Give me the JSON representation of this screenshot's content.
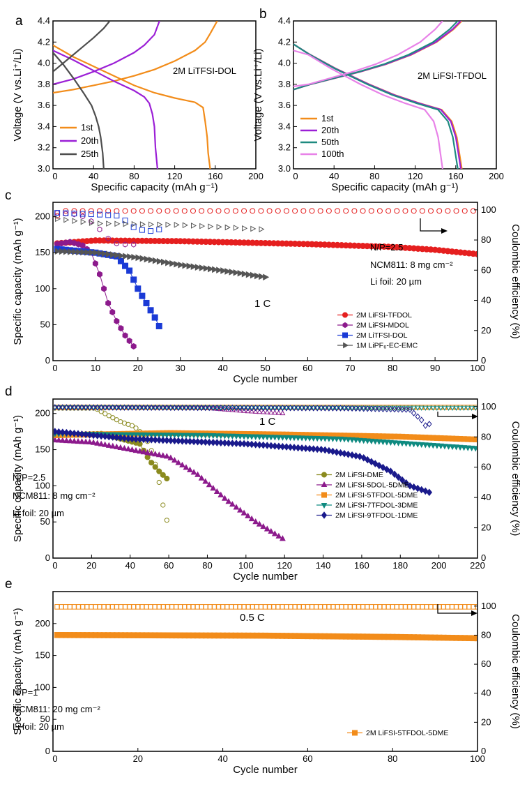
{
  "figure": {
    "panel_labels": [
      "a",
      "b",
      "c",
      "d",
      "e"
    ]
  },
  "colors": {
    "orange": "#f28c1a",
    "purple": "#9b1fd6",
    "darkgray": "#4d4d4d",
    "teal": "#1f8a80",
    "violet": "#e882e8",
    "red": "#e51f1f",
    "magenta": "#8c1a8c",
    "blue": "#1a3ad6",
    "gray": "#555555",
    "olive": "#8a8a1e",
    "navy": "#1a1a8c",
    "teal2": "#0f8a80"
  },
  "chart_data": [
    {
      "id": "a",
      "type": "line",
      "xlabel": "Specific capacity (mAh g⁻¹)",
      "ylabel": "Voltage (V vs.Li⁺/Li)",
      "xlim": [
        0,
        200
      ],
      "ylim": [
        3.0,
        4.4
      ],
      "xticks": [
        "0",
        "40",
        "80",
        "120",
        "160",
        "200"
      ],
      "yticks": [
        "3.0",
        "3.2",
        "3.4",
        "3.6",
        "3.8",
        "4.0",
        "4.2",
        "4.4"
      ],
      "annotation": "2M LiTFSI-DOL",
      "legend": [
        "1st",
        "20th",
        "25th"
      ],
      "series": [
        {
          "name": "1st",
          "color": "orange",
          "charge": {
            "x": [
              0,
              20,
              40,
              60,
              80,
              100,
              120,
              140,
              150,
              155
            ],
            "y": [
              3.72,
              3.75,
              3.79,
              3.83,
              3.88,
              3.94,
              4.02,
              4.12,
              4.2,
              4.28
            ]
          },
          "charge_end": {
            "x": [
              155,
              162
            ],
            "y": [
              4.28,
              4.4
            ]
          },
          "discharge": {
            "x": [
              0,
              20,
              40,
              60,
              80,
              100,
              120,
              140,
              148,
              150,
              152,
              153,
              155
            ],
            "y": [
              4.17,
              4.06,
              3.97,
              3.88,
              3.79,
              3.72,
              3.67,
              3.63,
              3.58,
              3.45,
              3.3,
              3.15,
              3.0
            ]
          }
        },
        {
          "name": "20th",
          "color": "purple",
          "charge": {
            "x": [
              0,
              20,
              40,
              60,
              80,
              90,
              100,
              105
            ],
            "y": [
              3.8,
              3.85,
              3.92,
              4.0,
              4.1,
              4.17,
              4.27,
              4.4
            ]
          },
          "discharge": {
            "x": [
              0,
              20,
              40,
              60,
              80,
              90,
              95,
              98,
              100,
              101,
              103
            ],
            "y": [
              4.12,
              4.03,
              3.93,
              3.83,
              3.74,
              3.68,
              3.62,
              3.52,
              3.4,
              3.2,
              3.0
            ]
          }
        },
        {
          "name": "25th",
          "color": "darkgray",
          "charge": {
            "x": [
              0,
              10,
              20,
              30,
              40,
              50,
              56
            ],
            "y": [
              3.92,
              4.0,
              4.08,
              4.16,
              4.24,
              4.33,
              4.4
            ]
          },
          "discharge": {
            "x": [
              0,
              10,
              20,
              30,
              38,
              42,
              45,
              47,
              49,
              50
            ],
            "y": [
              4.1,
              3.99,
              3.86,
              3.72,
              3.6,
              3.5,
              3.4,
              3.3,
              3.15,
              3.0
            ]
          }
        }
      ]
    },
    {
      "id": "b",
      "type": "line",
      "xlabel": "Specific capacity (mAh g⁻¹)",
      "ylabel": "Voltage (V vs.Li⁺/Li)",
      "xlim": [
        0,
        200
      ],
      "ylim": [
        3.0,
        4.4
      ],
      "xticks": [
        "0",
        "40",
        "80",
        "120",
        "160",
        "200"
      ],
      "yticks": [
        "3.0",
        "3.2",
        "3.4",
        "3.6",
        "3.8",
        "4.0",
        "4.2",
        "4.4"
      ],
      "annotation": "2M LiFSI-TFDOL",
      "legend": [
        "1st",
        "20th",
        "50th",
        "100th"
      ],
      "series": [
        {
          "name": "1st",
          "color": "orange",
          "cap": 166
        },
        {
          "name": "20th",
          "color": "purple",
          "cap": 165
        },
        {
          "name": "50th",
          "color": "teal",
          "cap": 162
        },
        {
          "name": "100th",
          "color": "violet",
          "cap": 147
        }
      ]
    },
    {
      "id": "c",
      "type": "scatter",
      "xlabel": "Cycle number",
      "ylabel": "Specific capacity (mAh g⁻¹)",
      "y2label": "Coulombic efficiency (%)",
      "xlim": [
        0,
        100
      ],
      "ylim": [
        0,
        220
      ],
      "y2lim": [
        0,
        105
      ],
      "xticks": [
        "0",
        "10",
        "20",
        "30",
        "40",
        "50",
        "60",
        "70",
        "80",
        "90",
        "100"
      ],
      "yticks": [
        "0",
        "50",
        "100",
        "150",
        "200"
      ],
      "y2ticks": [
        "0",
        "20",
        "40",
        "60",
        "80",
        "100"
      ],
      "annotations": [
        "N/P=2.5",
        "NCM811: 8 mg cm⁻²",
        "Li foil: 20 µm",
        "1 C"
      ],
      "legend": [
        "2M LiFSI-TFDOL",
        "2M LiFSI-MDOL",
        "2M LiTFSI-DOL",
        "1M LiPF₆-EC-EMC"
      ],
      "series": [
        {
          "name": "2M LiFSI-TFDOL",
          "color": "red",
          "marker": "circle",
          "cap_x": [
            1,
            100
          ],
          "cap_keys": [
            [
              1,
              163
            ],
            [
              10,
              167
            ],
            [
              30,
              166
            ],
            [
              60,
              162
            ],
            [
              80,
              158
            ],
            [
              90,
              154
            ],
            [
              100,
              148
            ]
          ],
          "ce_keys": [
            [
              1,
              96
            ],
            [
              3,
              99.3
            ],
            [
              100,
              99.3
            ]
          ]
        },
        {
          "name": "2M LiFSI-MDOL",
          "color": "magenta",
          "marker": "hexagon",
          "cap_x": [
            1,
            19
          ],
          "cap_keys": [
            [
              1,
              162
            ],
            [
              4,
              165
            ],
            [
              7,
              160
            ],
            [
              9,
              150
            ],
            [
              11,
              120
            ],
            [
              13,
              80
            ],
            [
              15,
              55
            ],
            [
              17,
              35
            ],
            [
              19,
              20
            ]
          ],
          "ce_keys": [
            [
              1,
              98
            ],
            [
              5,
              97
            ],
            [
              8,
              95
            ],
            [
              10,
              90
            ],
            [
              12,
              84
            ],
            [
              14,
              78
            ],
            [
              17,
              77
            ]
          ]
        },
        {
          "name": "2M LiTFSI-DOL",
          "color": "blue",
          "marker": "square",
          "cap_x": [
            1,
            25
          ],
          "cap_keys": [
            [
              1,
              155
            ],
            [
              10,
              150
            ],
            [
              15,
              145
            ],
            [
              18,
              125
            ],
            [
              20,
              100
            ],
            [
              22,
              80
            ],
            [
              24,
              60
            ],
            [
              25,
              48
            ]
          ],
          "ce_keys": [
            [
              1,
              98
            ],
            [
              10,
              97
            ],
            [
              16,
              96
            ],
            [
              18,
              90
            ],
            [
              20,
              87
            ],
            [
              23,
              86
            ],
            [
              25,
              87
            ]
          ]
        },
        {
          "name": "1M LiPF₆-EC-EMC",
          "color": "gray",
          "marker": "triangle-right",
          "cap_x": [
            1,
            50
          ],
          "cap_keys": [
            [
              1,
              152
            ],
            [
              10,
              150
            ],
            [
              20,
              143
            ],
            [
              30,
              133
            ],
            [
              40,
              125
            ],
            [
              50,
              116
            ]
          ],
          "ce_keys": [
            [
              1,
              94
            ],
            [
              10,
              91
            ],
            [
              30,
              90
            ],
            [
              50,
              87
            ]
          ]
        }
      ]
    },
    {
      "id": "d",
      "type": "scatter",
      "xlabel": "Cycle number",
      "ylabel": "Specific capacity (mAh g⁻¹)",
      "y2label": "Coulombic efficiency (%)",
      "xlim": [
        0,
        220
      ],
      "ylim": [
        0,
        220
      ],
      "y2lim": [
        0,
        105
      ],
      "xticks": [
        "0",
        "20",
        "40",
        "60",
        "80",
        "100",
        "120",
        "140",
        "160",
        "180",
        "200",
        "220"
      ],
      "yticks": [
        "0",
        "50",
        "100",
        "150",
        "200"
      ],
      "y2ticks": [
        "0",
        "20",
        "40",
        "60",
        "80",
        "100"
      ],
      "annotations": [
        "N/P=2.5",
        "NCM811: 8 mg cm⁻²",
        "Li foil: 20 µm",
        "1 C"
      ],
      "legend": [
        "2M LiFSI-DME",
        "2M LiFSI-5DOL-5DME",
        "2M LiFSI-5TFDOL-5DME",
        "2M LiFSI-7TFDOL-3DME",
        "2M LiFSI-9TFDOL-1DME"
      ],
      "series": [
        {
          "name": "2M LiFSI-DME",
          "color": "olive",
          "marker": "circle",
          "cap_x": [
            1,
            59
          ],
          "cap_keys": [
            [
              1,
              170
            ],
            [
              25,
              172
            ],
            [
              35,
              165
            ],
            [
              45,
              158
            ],
            [
              50,
              135
            ],
            [
              55,
              120
            ],
            [
              59,
              110
            ]
          ],
          "ce_keys": [
            [
              1,
              99
            ],
            [
              22,
              99
            ],
            [
              26,
              96
            ],
            [
              35,
              90
            ],
            [
              42,
              87
            ],
            [
              48,
              80
            ],
            [
              52,
              68
            ],
            [
              55,
              50
            ],
            [
              57,
              35
            ],
            [
              59,
              25
            ]
          ]
        },
        {
          "name": "2M LiFSI-5DOL-5DME",
          "color": "magenta",
          "marker": "triangle-up",
          "cap_x": [
            1,
            120
          ],
          "cap_keys": [
            [
              1,
              163
            ],
            [
              20,
              160
            ],
            [
              40,
              150
            ],
            [
              60,
              140
            ],
            [
              75,
              115
            ],
            [
              90,
              80
            ],
            [
              105,
              50
            ],
            [
              120,
              25
            ]
          ],
          "ce_keys": [
            [
              1,
              99.5
            ],
            [
              80,
              99
            ],
            [
              100,
              97
            ],
            [
              120,
              95.5
            ]
          ]
        },
        {
          "name": "2M LiFSI-5TFDOL-5DME",
          "color": "orange",
          "marker": "square",
          "cap_x": [
            1,
            220
          ],
          "cap_keys": [
            [
              1,
              170
            ],
            [
              60,
              173
            ],
            [
              120,
              171
            ],
            [
              180,
              168
            ],
            [
              220,
              164
            ]
          ],
          "ce_keys": [
            [
              1,
              99.5
            ],
            [
              220,
              99.5
            ]
          ]
        },
        {
          "name": "2M LiFSI-7TFDOL-3DME",
          "color": "teal2",
          "marker": "triangle-down",
          "cap_x": [
            1,
            220
          ],
          "cap_keys": [
            [
              1,
              172
            ],
            [
              80,
              170
            ],
            [
              150,
              165
            ],
            [
              220,
              152
            ]
          ],
          "ce_keys": [
            [
              1,
              99.5
            ],
            [
              220,
              99.3
            ]
          ]
        },
        {
          "name": "2M LiFSI-9TFDOL-1DME",
          "color": "navy",
          "marker": "diamond",
          "cap_x": [
            1,
            196
          ],
          "cap_keys": [
            [
              1,
              175
            ],
            [
              40,
              165
            ],
            [
              100,
              158
            ],
            [
              140,
              150
            ],
            [
              160,
              140
            ],
            [
              175,
              120
            ],
            [
              185,
              100
            ],
            [
              196,
              90
            ]
          ],
          "ce_keys": [
            [
              1,
              99.5
            ],
            [
              150,
              99
            ],
            [
              185,
              98
            ],
            [
              192,
              90
            ],
            [
              194,
              85
            ],
            [
              196,
              92
            ]
          ]
        }
      ]
    },
    {
      "id": "e",
      "type": "scatter",
      "xlabel": "Cycle number",
      "ylabel": "Specific capacity (mAh g⁻¹)",
      "y2label": "Coulombic efficiency (%)",
      "xlim": [
        0,
        100
      ],
      "ylim": [
        0,
        250
      ],
      "y2lim": [
        0,
        110
      ],
      "xticks": [
        "0",
        "20",
        "40",
        "60",
        "80",
        "100"
      ],
      "yticks": [
        "0",
        "50",
        "100",
        "150",
        "200"
      ],
      "y2ticks": [
        "0",
        "20",
        "40",
        "60",
        "80",
        "100"
      ],
      "annotations": [
        "N/P=1",
        "NCM811: 20 mg cm⁻²",
        "Li foil: 20 µm",
        "0.5 C"
      ],
      "legend": [
        "2M LiFSI-5TFDOL-5DME"
      ],
      "series": [
        {
          "name": "2M LiFSI-5TFDOL-5DME",
          "color": "orange",
          "marker": "square",
          "cap_x": [
            1,
            100
          ],
          "cap_keys": [
            [
              1,
              182
            ],
            [
              50,
              181
            ],
            [
              80,
              179
            ],
            [
              100,
              177
            ]
          ],
          "ce_keys": [
            [
              1,
              99.5
            ],
            [
              100,
              99.5
            ]
          ]
        }
      ]
    }
  ]
}
